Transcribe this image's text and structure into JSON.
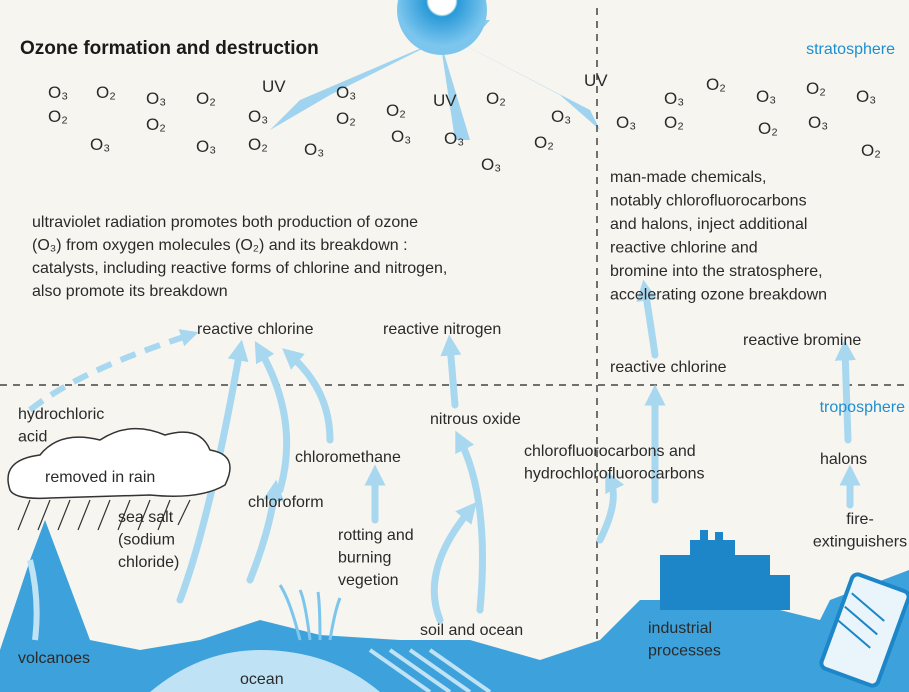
{
  "title": "Ozone formation and destruction",
  "regions": {
    "stratosphere": "stratosphere",
    "troposphere": "troposphere"
  },
  "molecules": [
    "O₃",
    "O₂",
    "O₃",
    "O₂",
    "O₂",
    "O₂",
    "O₃",
    "O₃",
    "O₂",
    "O₂",
    "O₂",
    "O₃",
    "O₃",
    "O₂",
    "O₃",
    "O₃",
    "O₃",
    "O₃",
    "O₂",
    "O₃",
    "O₃",
    "O₂",
    "O₃",
    "O₂",
    "O₃",
    "O₂",
    "O₃",
    "O₂",
    "O₃",
    "O₂"
  ],
  "uv": [
    "UV",
    "UV",
    "UV"
  ],
  "notes": {
    "left": [
      "ultraviolet radiation promotes both production of ozone",
      "(O₃) from oxygen molecules (O₂) and its breakdown :",
      "catalysts, including reactive forms of chlorine and nitrogen,",
      "also promote its breakdown"
    ],
    "right": [
      "man-made chemicals,",
      "notably chlorofluorocarbons",
      "and halons, inject additional",
      "reactive chlorine and",
      "bromine into the stratosphere,",
      "accelerating ozone breakdown"
    ]
  },
  "labels": [
    {
      "lines": [
        "reactive chlorine"
      ]
    },
    {
      "lines": [
        "reactive nitrogen"
      ]
    },
    {
      "lines": [
        "reactive bromine"
      ]
    },
    {
      "lines": [
        "reactive chlorine"
      ]
    },
    {
      "lines": [
        "hydrochloric",
        "acid"
      ]
    },
    {
      "lines": [
        "removed in rain"
      ]
    },
    {
      "lines": [
        "sea salt",
        "(sodium",
        "chloride)"
      ]
    },
    {
      "lines": [
        "chloroform"
      ]
    },
    {
      "lines": [
        "chloromethane"
      ]
    },
    {
      "lines": [
        "nitrous oxide"
      ]
    },
    {
      "lines": [
        "rotting and",
        "burning",
        "vegetion"
      ]
    },
    {
      "lines": [
        "chlorofluorocarbons and",
        "hydrochlorofluorocarbons"
      ]
    },
    {
      "lines": [
        "halons"
      ]
    },
    {
      "lines": [
        "fire-",
        "extinguishers"
      ]
    },
    {
      "lines": [
        "volcanoes"
      ]
    },
    {
      "lines": [
        "ocean"
      ]
    },
    {
      "lines": [
        "soil and ocean"
      ]
    },
    {
      "lines": [
        "industrial",
        "processes"
      ]
    }
  ]
}
